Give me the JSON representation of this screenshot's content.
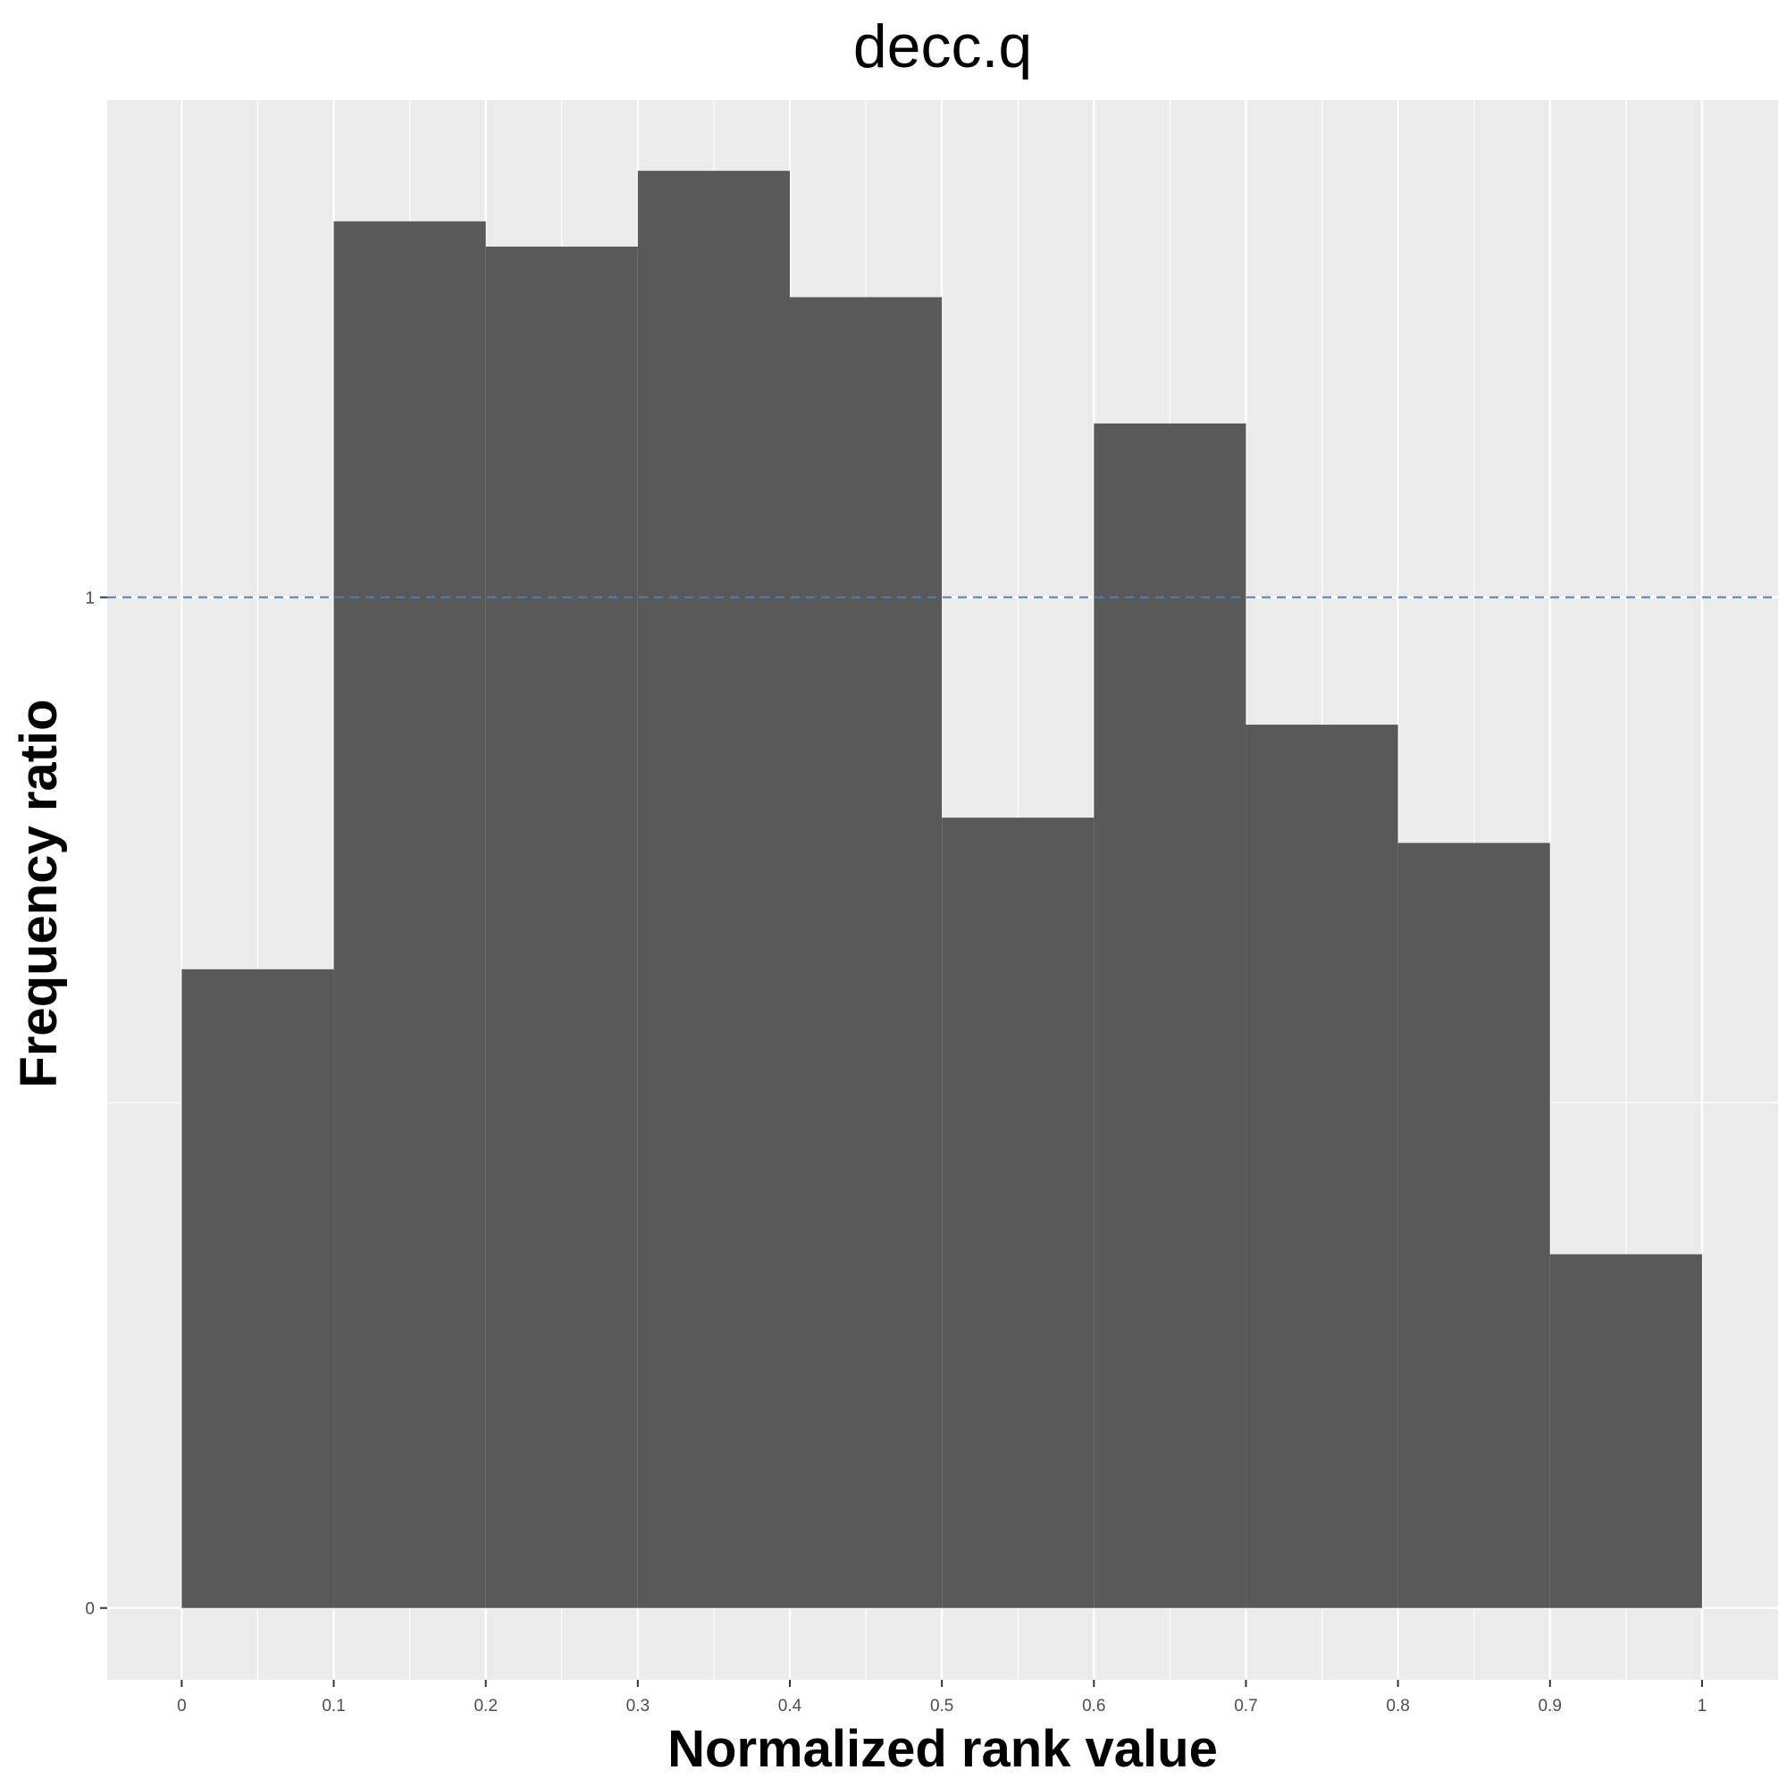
{
  "chart_data": {
    "type": "bar",
    "title": "decc.q",
    "xlabel": "Normalized rank value",
    "ylabel": "Frequency ratio",
    "bins": [
      {
        "x0": 0.0,
        "x1": 0.1,
        "value": 0.632
      },
      {
        "x0": 0.1,
        "x1": 0.2,
        "value": 1.372
      },
      {
        "x0": 0.2,
        "x1": 0.3,
        "value": 1.347
      },
      {
        "x0": 0.3,
        "x1": 0.4,
        "value": 1.422
      },
      {
        "x0": 0.4,
        "x1": 0.5,
        "value": 1.297
      },
      {
        "x0": 0.5,
        "x1": 0.6,
        "value": 0.782
      },
      {
        "x0": 0.6,
        "x1": 0.7,
        "value": 1.172
      },
      {
        "x0": 0.7,
        "x1": 0.8,
        "value": 0.874
      },
      {
        "x0": 0.8,
        "x1": 0.9,
        "value": 0.757
      },
      {
        "x0": 0.9,
        "x1": 1.0,
        "value": 0.35
      }
    ],
    "x_ticks": [
      "0",
      "0.1",
      "0.2",
      "0.3",
      "0.4",
      "0.5",
      "0.6",
      "0.7",
      "0.8",
      "0.9",
      "1"
    ],
    "y_ticks": [
      "0",
      "1"
    ],
    "xlim": [
      -0.049,
      1.05
    ],
    "ylim": [
      -0.071,
      1.492
    ],
    "reference_line": {
      "y": 1,
      "style": "dashed",
      "color": "#4682b4"
    },
    "colors": {
      "bar": "#595959",
      "panel": "#ebebeb",
      "grid": "#ffffff"
    },
    "grid": true,
    "legend": "none"
  }
}
